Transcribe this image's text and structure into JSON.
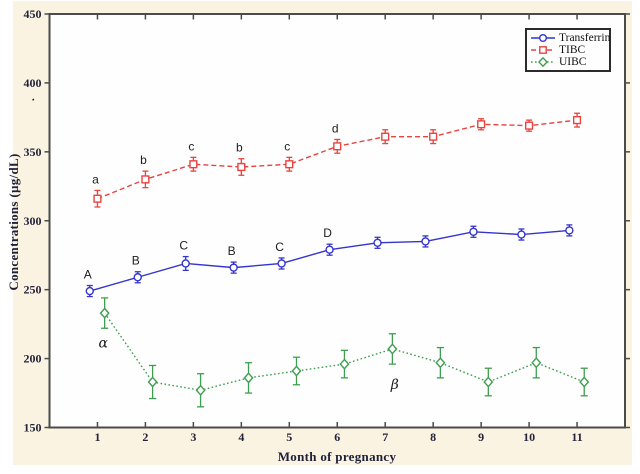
{
  "figure": {
    "page_bg": "#ffffff",
    "canvas_bg": "#faf3e2",
    "plot_bg": "#fefefe",
    "frame_color": "#4b4b4b",
    "tick_text_color": "#23233a",
    "axis_title_color": "#1e2038"
  },
  "chart_data": {
    "type": "line",
    "title": "",
    "xlabel": "Month of pregnancy",
    "ylabel": "Concentrations (µg/dL)",
    "x": [
      1,
      2,
      3,
      4,
      5,
      6,
      7,
      8,
      9,
      10,
      11
    ],
    "xlim": [
      0,
      12
    ],
    "ylim": [
      150,
      450
    ],
    "yticks": [
      150,
      200,
      250,
      300,
      350,
      400,
      450
    ],
    "grid": false,
    "legend_position": "top-right",
    "series": [
      {
        "name": "Transferrin",
        "color": "#3434cf",
        "line": "solid",
        "marker": "circle",
        "x_offset": -0.16,
        "values": [
          249,
          259,
          269,
          266,
          269,
          279,
          284,
          285,
          292,
          290,
          293
        ],
        "errors": [
          4,
          4,
          5,
          4,
          4,
          4,
          4,
          4,
          4,
          4,
          4
        ],
        "point_labels": [
          "A",
          "B",
          "C",
          "B",
          "C",
          "D",
          "",
          "",
          "",
          "",
          ""
        ]
      },
      {
        "name": "TIBC",
        "color": "#e8433f",
        "line": "dashed",
        "marker": "square",
        "x_offset": 0,
        "values": [
          316,
          330,
          341,
          339,
          341,
          354,
          361,
          361,
          370,
          369,
          373
        ],
        "errors": [
          6,
          6,
          5,
          6,
          5,
          5,
          5,
          5,
          4,
          4,
          5
        ],
        "point_labels": [
          "a",
          "b",
          "c",
          "b",
          "c",
          "d",
          "",
          "",
          "",
          "",
          ""
        ]
      },
      {
        "name": "UIBC",
        "color": "#3e9e4f",
        "line": "dotted",
        "marker": "diamond",
        "x_offset": 0.15,
        "values": [
          233,
          183,
          177,
          186,
          191,
          196,
          207,
          197,
          183,
          197,
          183
        ],
        "errors": [
          11,
          12,
          12,
          11,
          10,
          10,
          11,
          11,
          10,
          11,
          10
        ],
        "point_labels": [
          "",
          "",
          "",
          "",
          "",
          "",
          "",
          "",
          "",
          "",
          ""
        ]
      }
    ],
    "annotations": [
      {
        "text": "α",
        "x": 1.12,
        "y": 211
      },
      {
        "text": "β",
        "x": 7.2,
        "y": 181
      },
      {
        "text": ".",
        "x": -0.34,
        "y": 390
      }
    ]
  }
}
